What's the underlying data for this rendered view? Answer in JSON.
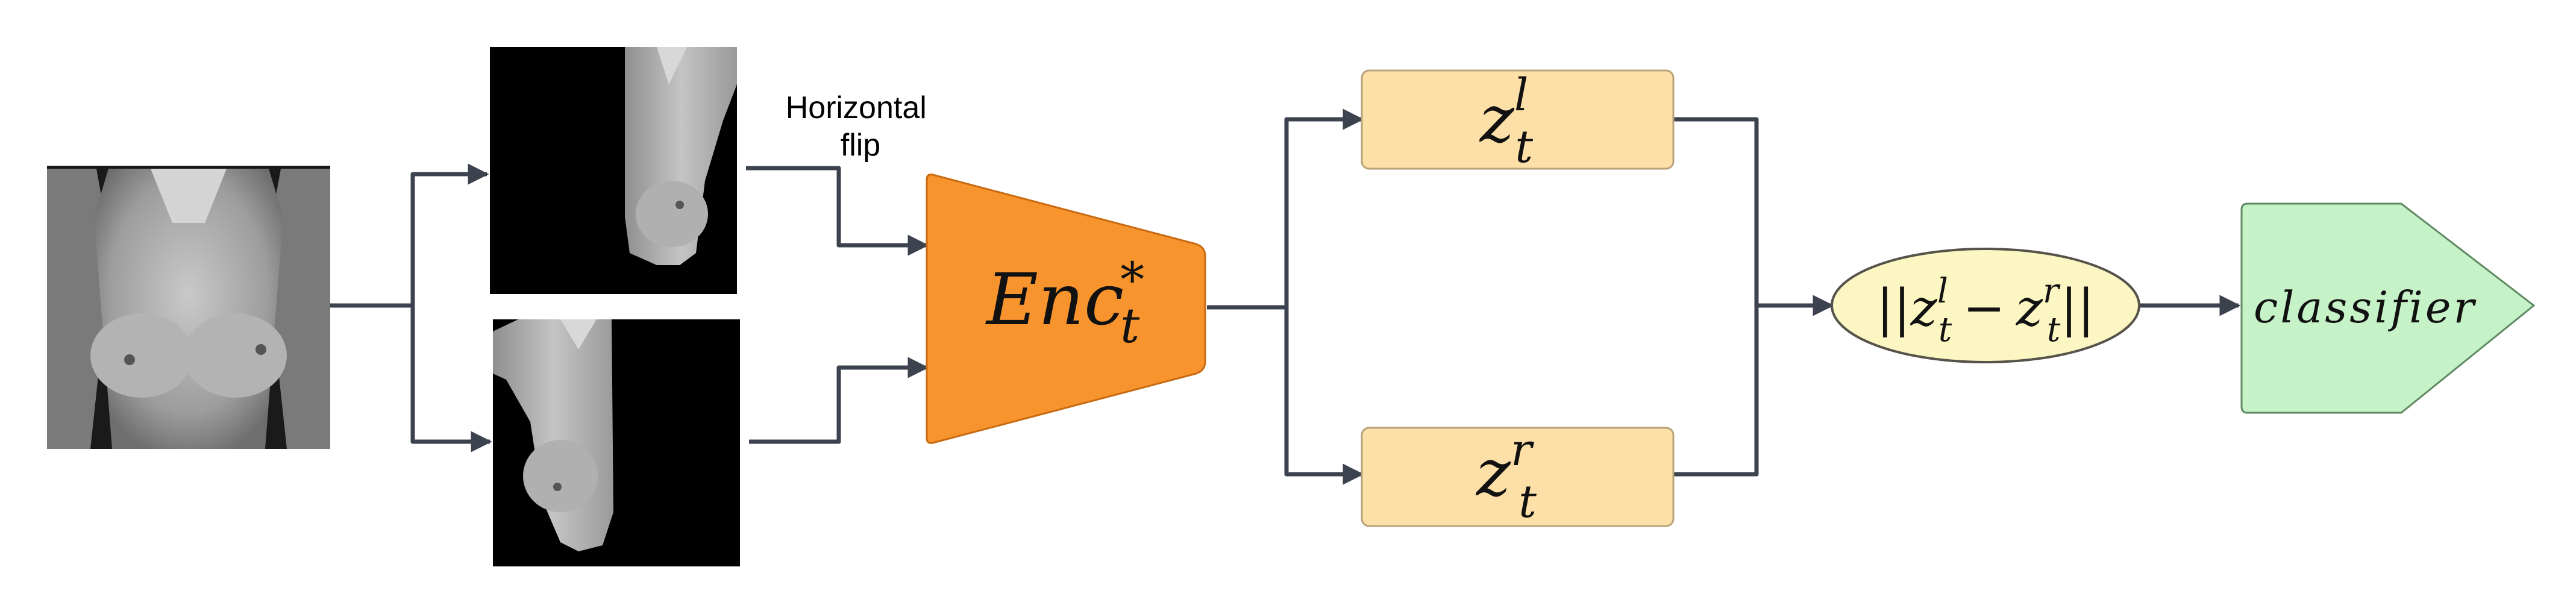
{
  "diagram": {
    "flip_label_line1": "Horizontal",
    "flip_label_line2": "flip",
    "encoder": {
      "base": "Enc",
      "sub": "t",
      "sup": "*"
    },
    "latent_left": {
      "base": "z",
      "sub": "t",
      "sup": "l"
    },
    "latent_right": {
      "base": "z",
      "sub": "t",
      "sup": "r"
    },
    "distance": {
      "open": "||",
      "a_base": "z",
      "a_sub": "t",
      "a_sup": "l",
      "minus": "−",
      "b_base": "z",
      "b_sub": "t",
      "b_sup": "r",
      "close": "||"
    },
    "classifier": "classifier"
  },
  "colors": {
    "arrow": "#3c434f",
    "encoder_fill": "#f7942e",
    "encoder_stroke": "#c96a10",
    "latent_fill": "#fde0a8",
    "latent_stroke": "#b8a27a",
    "distance_fill": "#fbf6c2",
    "distance_stroke": "#55524a",
    "classifier_fill": "#c6f2c8",
    "classifier_stroke": "#5f8a63",
    "thermal_bg": "#111111"
  }
}
